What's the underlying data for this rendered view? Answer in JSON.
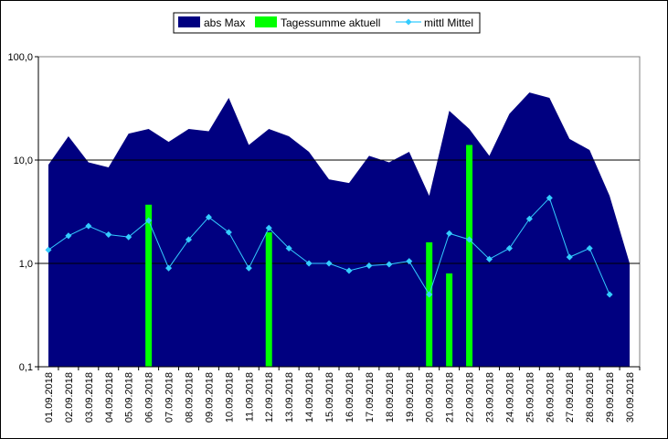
{
  "chart_data": {
    "type": "area",
    "y_scale": "log",
    "ylim": [
      0.1,
      100
    ],
    "y_ticks": [
      "0,1",
      "1,0",
      "10,0",
      "100,0"
    ],
    "grid": "horizontal major lines at decades",
    "legend_position": "top-center",
    "categories": [
      "01.09.2018",
      "02.09.2018",
      "03.09.2018",
      "04.09.2018",
      "05.09.2018",
      "06.09.2018",
      "07.09.2018",
      "08.09.2018",
      "09.09.2018",
      "10.09.2018",
      "11.09.2018",
      "12.09.2018",
      "13.09.2018",
      "14.09.2018",
      "15.09.2018",
      "16.09.2018",
      "17.09.2018",
      "18.09.2018",
      "19.09.2018",
      "20.09.2018",
      "21.09.2018",
      "22.09.2018",
      "23.09.2018",
      "24.09.2018",
      "25.09.2018",
      "26.09.2018",
      "27.09.2018",
      "28.09.2018",
      "29.09.2018",
      "30.09.2018"
    ],
    "series": [
      {
        "name": "abs Max",
        "type": "area",
        "color": "#000080",
        "values": [
          9.0,
          17.0,
          9.5,
          8.5,
          18.0,
          20.0,
          15.0,
          20.0,
          19.0,
          40.0,
          14.0,
          20.0,
          17.0,
          12.0,
          6.5,
          6.0,
          11.0,
          9.5,
          12.0,
          4.5,
          30.0,
          20.0,
          11.0,
          28.0,
          45.0,
          40.0,
          16.0,
          12.5,
          4.5,
          1.0
        ]
      },
      {
        "name": "Tagessumme aktuell",
        "type": "bar",
        "color": "#00ff00",
        "values": [
          null,
          null,
          null,
          null,
          null,
          3.7,
          null,
          null,
          null,
          null,
          null,
          2.0,
          null,
          null,
          null,
          null,
          null,
          null,
          null,
          1.6,
          0.8,
          14.0,
          null,
          null,
          null,
          null,
          null,
          null,
          null,
          null
        ]
      },
      {
        "name": "mittl Mittel",
        "type": "line",
        "color": "#33ccff",
        "values": [
          1.35,
          1.85,
          2.3,
          1.9,
          1.8,
          2.6,
          0.9,
          1.7,
          2.8,
          2.0,
          0.9,
          2.2,
          1.4,
          1.0,
          1.0,
          0.85,
          0.95,
          0.98,
          1.05,
          0.5,
          1.95,
          1.7,
          1.1,
          1.4,
          2.7,
          4.3,
          1.15,
          1.4,
          0.5,
          null
        ]
      }
    ]
  }
}
